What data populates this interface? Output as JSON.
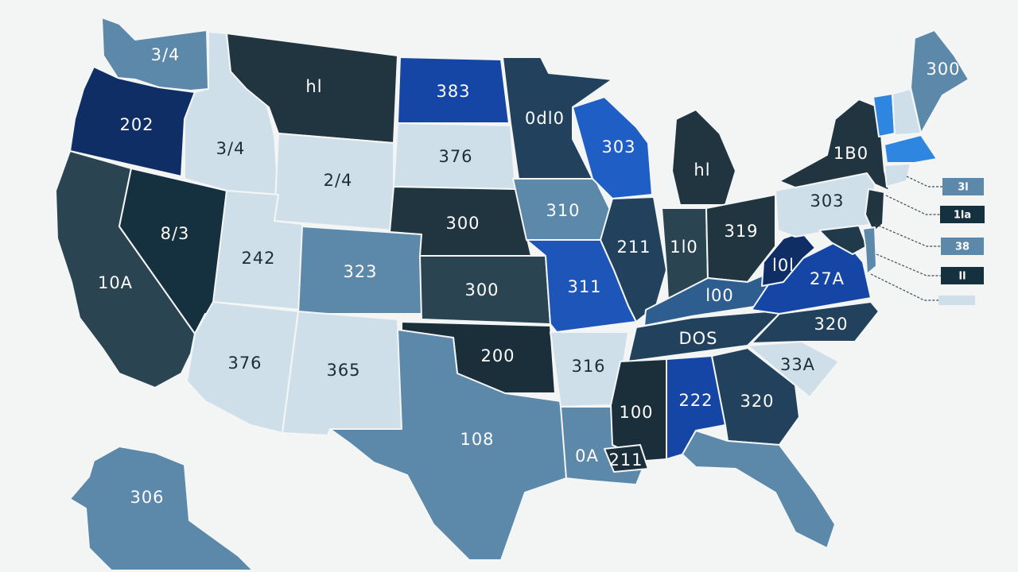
{
  "map": {
    "palette": {
      "lightest": "#cfdfe9",
      "light_steel": "#5c88aa",
      "medium_slate": "#345a78",
      "dark_slate": "#203a4c",
      "deep_navy": "#0f2e66",
      "royal_blue": "#1546a6",
      "bright_blue": "#2a6ccc",
      "vivid_blue": "#2f86e0",
      "background": "#f3f5f4"
    },
    "states": [
      {
        "name": "WA",
        "label": "3/4",
        "color": "#5c88aa",
        "text_color": "#ffffff"
      },
      {
        "name": "OR",
        "label": "202",
        "color": "#0f2e66",
        "text_color": "#ffffff"
      },
      {
        "name": "CA",
        "label": "10A",
        "color": "#2b4452",
        "text_color": "#ffffff"
      },
      {
        "name": "NV",
        "label": "8/3",
        "color": "#15303f",
        "text_color": "#ffffff"
      },
      {
        "name": "ID",
        "label": "3/4",
        "color": "#cfdfe9",
        "text_color": "#1c2c38"
      },
      {
        "name": "MT",
        "label": "hl",
        "color": "#213540",
        "text_color": "#ffffff"
      },
      {
        "name": "WY",
        "label": "2/4",
        "color": "#cfdfe9",
        "text_color": "#1c2c38"
      },
      {
        "name": "UT",
        "label": "242",
        "color": "#cfdfe9",
        "text_color": "#1c2c38"
      },
      {
        "name": "CO",
        "label": "323",
        "color": "#5c88aa",
        "text_color": "#ffffff"
      },
      {
        "name": "AZ",
        "label": "376",
        "color": "#cfdfe9",
        "text_color": "#1c2c38"
      },
      {
        "name": "NM",
        "label": "365",
        "color": "#cfdfe9",
        "text_color": "#1c2c38"
      },
      {
        "name": "ND",
        "label": "383",
        "color": "#1546a6",
        "text_color": "#ffffff"
      },
      {
        "name": "SD",
        "label": "376",
        "color": "#cfdfe9",
        "text_color": "#1c2c38"
      },
      {
        "name": "NE",
        "label": "300",
        "color": "#213540",
        "text_color": "#ffffff"
      },
      {
        "name": "KS",
        "label": "300",
        "color": "#2b4452",
        "text_color": "#ffffff"
      },
      {
        "name": "OK",
        "label": "200",
        "color": "#1b2f3b",
        "text_color": "#ffffff"
      },
      {
        "name": "TX",
        "label": "108",
        "color": "#5c88aa",
        "text_color": "#ffffff"
      },
      {
        "name": "MN",
        "label": "0dl0",
        "color": "#21415c",
        "text_color": "#ffffff"
      },
      {
        "name": "IA",
        "label": "310",
        "color": "#5c88aa",
        "text_color": "#ffffff"
      },
      {
        "name": "MO",
        "label": "311",
        "color": "#1e55b8",
        "text_color": "#ffffff"
      },
      {
        "name": "AR",
        "label": "316",
        "color": "#cfdfe9",
        "text_color": "#1c2c38"
      },
      {
        "name": "LA",
        "label": "0A",
        "color": "#5c88aa",
        "text_color": "#ffffff"
      },
      {
        "name": "WI",
        "label": "303",
        "color": "#1f5ec4",
        "text_color": "#ffffff"
      },
      {
        "name": "IL",
        "label": "211",
        "color": "#21415c",
        "text_color": "#ffffff"
      },
      {
        "name": "MI",
        "label": "hl",
        "color": "#213540",
        "text_color": "#ffffff"
      },
      {
        "name": "IN",
        "label": "1l0",
        "color": "#2b4452",
        "text_color": "#ffffff"
      },
      {
        "name": "OH",
        "label": "319",
        "color": "#213540",
        "text_color": "#ffffff"
      },
      {
        "name": "KY",
        "label": "l00",
        "color": "#2e5e8f",
        "text_color": "#ffffff"
      },
      {
        "name": "TN",
        "label": "DOS",
        "color": "#21415c",
        "text_color": "#ffffff"
      },
      {
        "name": "MS",
        "label": "100",
        "color": "#1b2f3b",
        "text_color": "#ffffff"
      },
      {
        "name": "AL",
        "label": "222",
        "color": "#1546a6",
        "text_color": "#ffffff"
      },
      {
        "name": "GA",
        "label": "320",
        "color": "#21415c",
        "text_color": "#ffffff"
      },
      {
        "name": "FL",
        "label": "",
        "color": "#5c88aa",
        "text_color": "#ffffff"
      },
      {
        "name": "SC",
        "label": "33A",
        "color": "#cfdfe9",
        "text_color": "#1c2c38"
      },
      {
        "name": "NC",
        "label": "320",
        "color": "#21415c",
        "text_color": "#ffffff"
      },
      {
        "name": "VA",
        "label": "27A",
        "color": "#1546a6",
        "text_color": "#ffffff"
      },
      {
        "name": "WV",
        "label": "l0l",
        "color": "#0f2e66",
        "text_color": "#ffffff"
      },
      {
        "name": "PA",
        "label": "303",
        "color": "#cfdfe9",
        "text_color": "#1c2c38"
      },
      {
        "name": "NY",
        "label": "1B0",
        "color": "#213540",
        "text_color": "#ffffff"
      },
      {
        "name": "VT",
        "label": "",
        "color": "#2f86e0",
        "text_color": "#ffffff"
      },
      {
        "name": "NH",
        "label": "",
        "color": "#cfdfe9",
        "text_color": "#1c2c38"
      },
      {
        "name": "ME",
        "label": "300",
        "color": "#5c88aa",
        "text_color": "#ffffff"
      },
      {
        "name": "MA",
        "label": "",
        "color": "#2f86e0",
        "text_color": "#ffffff"
      },
      {
        "name": "CT",
        "label": "",
        "color": "#cfdfe9",
        "text_color": "#1c2c38"
      },
      {
        "name": "NJ",
        "label": "",
        "color": "#213540",
        "text_color": "#ffffff"
      },
      {
        "name": "MD",
        "label": "",
        "color": "#203a4c",
        "text_color": "#ffffff"
      },
      {
        "name": "DE",
        "label": "",
        "color": "#5c88aa",
        "text_color": "#ffffff"
      },
      {
        "name": "AK",
        "label": "306",
        "color": "#5c88aa",
        "text_color": "#ffffff"
      },
      {
        "name": "MS-coast",
        "label": "211",
        "color": "#1b2f3b",
        "text_color": "#ffffff"
      }
    ],
    "callouts": [
      {
        "name": "RI",
        "label": "3l",
        "color": "#5c88aa",
        "text_color": "#ffffff"
      },
      {
        "name": "CT-callout",
        "label": "1la",
        "color": "#15303f",
        "text_color": "#ffffff"
      },
      {
        "name": "NJ-callout",
        "label": "38",
        "color": "#5c88aa",
        "text_color": "#ffffff"
      },
      {
        "name": "DE-callout",
        "label": "Il",
        "color": "#15303f",
        "text_color": "#ffffff"
      },
      {
        "name": "DC-callout",
        "label": "",
        "color": "#cfdfe9",
        "text_color": "#1c2c38"
      }
    ]
  }
}
